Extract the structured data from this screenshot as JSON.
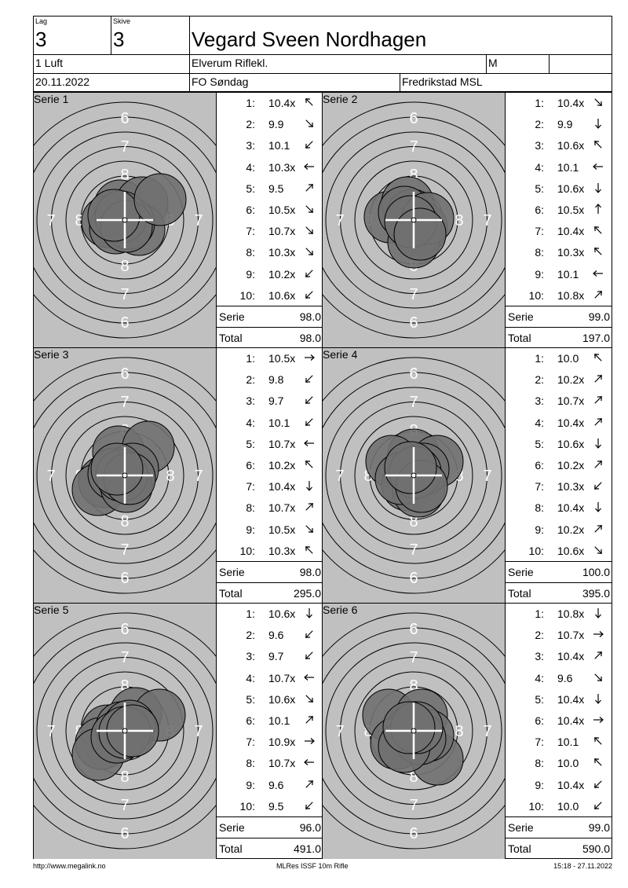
{
  "header": {
    "lag_label": "Lag",
    "lag_value": "3",
    "skive_label": "Skive",
    "skive_value": "3",
    "shooter_name": "Vegard Sveen Nordhagen",
    "class": "1 Luft",
    "club": "Elverum Riflekl.",
    "gender": "M",
    "date": "20.11.2022",
    "event": "FO Søndag",
    "venue": "Fredrikstad MSL"
  },
  "series": [
    {
      "label": "Serie 1",
      "serie_label": "Serie",
      "total_label": "Total",
      "serie_sum": "98.0",
      "total": "98.0",
      "shots": [
        {
          "n": "1:",
          "v": "10.4x",
          "dir": "up-left"
        },
        {
          "n": "2:",
          "v": "9.9",
          "dir": "down-right"
        },
        {
          "n": "3:",
          "v": "10.1",
          "dir": "down-left"
        },
        {
          "n": "4:",
          "v": "10.3x",
          "dir": "left"
        },
        {
          "n": "5:",
          "v": "9.5",
          "dir": "up-right"
        },
        {
          "n": "6:",
          "v": "10.5x",
          "dir": "down-right"
        },
        {
          "n": "7:",
          "v": "10.7x",
          "dir": "down-right"
        },
        {
          "n": "8:",
          "v": "10.3x",
          "dir": "down-right"
        },
        {
          "n": "9:",
          "v": "10.2x",
          "dir": "down-left"
        },
        {
          "n": "10:",
          "v": "10.6x",
          "dir": "down-left"
        }
      ]
    },
    {
      "label": "Serie 2",
      "serie_label": "Serie",
      "total_label": "Total",
      "serie_sum": "99.0",
      "total": "197.0",
      "shots": [
        {
          "n": "1:",
          "v": "10.4x",
          "dir": "down-right"
        },
        {
          "n": "2:",
          "v": "9.9",
          "dir": "down"
        },
        {
          "n": "3:",
          "v": "10.6x",
          "dir": "up-left"
        },
        {
          "n": "4:",
          "v": "10.1",
          "dir": "left"
        },
        {
          "n": "5:",
          "v": "10.6x",
          "dir": "down"
        },
        {
          "n": "6:",
          "v": "10.5x",
          "dir": "up"
        },
        {
          "n": "7:",
          "v": "10.4x",
          "dir": "up-left"
        },
        {
          "n": "8:",
          "v": "10.3x",
          "dir": "up-left"
        },
        {
          "n": "9:",
          "v": "10.1",
          "dir": "left"
        },
        {
          "n": "10:",
          "v": "10.8x",
          "dir": "up-right"
        }
      ]
    },
    {
      "label": "Serie 3",
      "serie_label": "Serie",
      "total_label": "Total",
      "serie_sum": "98.0",
      "total": "295.0",
      "shots": [
        {
          "n": "1:",
          "v": "10.5x",
          "dir": "right"
        },
        {
          "n": "2:",
          "v": "9.8",
          "dir": "down-left"
        },
        {
          "n": "3:",
          "v": "9.7",
          "dir": "down-left"
        },
        {
          "n": "4:",
          "v": "10.1",
          "dir": "down-left"
        },
        {
          "n": "5:",
          "v": "10.7x",
          "dir": "left"
        },
        {
          "n": "6:",
          "v": "10.2x",
          "dir": "up-left"
        },
        {
          "n": "7:",
          "v": "10.4x",
          "dir": "down"
        },
        {
          "n": "8:",
          "v": "10.7x",
          "dir": "up-right"
        },
        {
          "n": "9:",
          "v": "10.5x",
          "dir": "down-right"
        },
        {
          "n": "10:",
          "v": "10.3x",
          "dir": "up-left"
        }
      ]
    },
    {
      "label": "Serie 4",
      "serie_label": "Serie",
      "total_label": "Total",
      "serie_sum": "100.0",
      "total": "395.0",
      "shots": [
        {
          "n": "1:",
          "v": "10.0",
          "dir": "up-left"
        },
        {
          "n": "2:",
          "v": "10.2x",
          "dir": "up-right"
        },
        {
          "n": "3:",
          "v": "10.7x",
          "dir": "up-right"
        },
        {
          "n": "4:",
          "v": "10.4x",
          "dir": "up-right"
        },
        {
          "n": "5:",
          "v": "10.6x",
          "dir": "down"
        },
        {
          "n": "6:",
          "v": "10.2x",
          "dir": "up-right"
        },
        {
          "n": "7:",
          "v": "10.3x",
          "dir": "down-left"
        },
        {
          "n": "8:",
          "v": "10.4x",
          "dir": "down"
        },
        {
          "n": "9:",
          "v": "10.2x",
          "dir": "up-right"
        },
        {
          "n": "10:",
          "v": "10.6x",
          "dir": "down-right"
        }
      ]
    },
    {
      "label": "Serie 5",
      "serie_label": "Serie",
      "total_label": "Total",
      "serie_sum": "96.0",
      "total": "491.0",
      "shots": [
        {
          "n": "1:",
          "v": "10.6x",
          "dir": "down"
        },
        {
          "n": "2:",
          "v": "9.6",
          "dir": "down-left"
        },
        {
          "n": "3:",
          "v": "9.7",
          "dir": "down-left"
        },
        {
          "n": "4:",
          "v": "10.7x",
          "dir": "left"
        },
        {
          "n": "5:",
          "v": "10.6x",
          "dir": "down-right"
        },
        {
          "n": "6:",
          "v": "10.1",
          "dir": "up-right"
        },
        {
          "n": "7:",
          "v": "10.9x",
          "dir": "right"
        },
        {
          "n": "8:",
          "v": "10.7x",
          "dir": "left"
        },
        {
          "n": "9:",
          "v": "9.6",
          "dir": "up-right"
        },
        {
          "n": "10:",
          "v": "9.5",
          "dir": "down-left"
        }
      ]
    },
    {
      "label": "Serie 6",
      "serie_label": "Serie",
      "total_label": "Total",
      "serie_sum": "99.0",
      "total": "590.0",
      "shots": [
        {
          "n": "1:",
          "v": "10.8x",
          "dir": "down"
        },
        {
          "n": "2:",
          "v": "10.7x",
          "dir": "right"
        },
        {
          "n": "3:",
          "v": "10.4x",
          "dir": "up-right"
        },
        {
          "n": "4:",
          "v": "9.6",
          "dir": "down-right"
        },
        {
          "n": "5:",
          "v": "10.4x",
          "dir": "down"
        },
        {
          "n": "6:",
          "v": "10.4x",
          "dir": "right"
        },
        {
          "n": "7:",
          "v": "10.1",
          "dir": "up-left"
        },
        {
          "n": "8:",
          "v": "10.0",
          "dir": "up-left"
        },
        {
          "n": "9:",
          "v": "10.4x",
          "dir": "down-left"
        },
        {
          "n": "10:",
          "v": "10.0",
          "dir": "down-left"
        }
      ]
    }
  ],
  "ring_labels": {
    "six": "6",
    "seven": "7",
    "eight": "8",
    "five": "5"
  },
  "footer": {
    "left": "http://www.megalink.no",
    "center": "MLRes ISSF 10m Rifle",
    "right": "15:18 - 27.11.2022"
  },
  "colors": {
    "target_bg": "#c0c0c0",
    "hit": "#707070",
    "line": "#000000"
  }
}
